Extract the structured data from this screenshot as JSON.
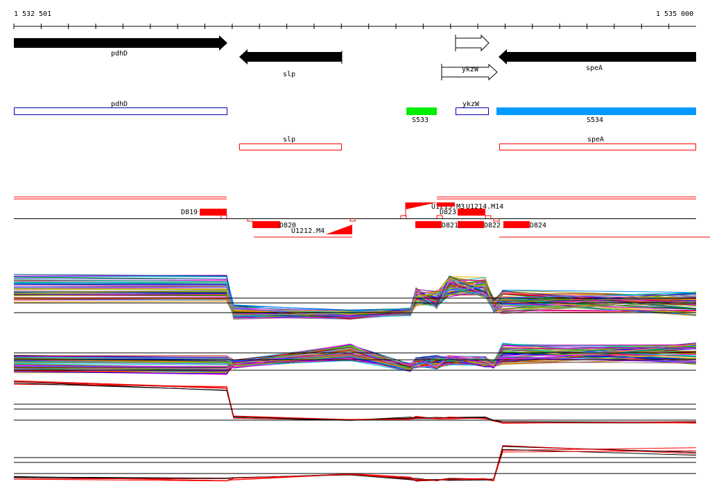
{
  "ruler": {
    "start_label": "1 532 501",
    "end_label": "1 535 000"
  },
  "genes_arrows": [
    {
      "name": "pdhD",
      "strand": "+",
      "filled": true
    },
    {
      "name": "slp",
      "strand": "-",
      "filled": true
    },
    {
      "name": "",
      "strand": "+",
      "filled": false
    },
    {
      "name": "ykzW",
      "strand": "+",
      "filled": false
    },
    {
      "name": "speA",
      "strand": "-",
      "filled": true
    }
  ],
  "annotation_boxes": [
    {
      "label": "pdhD",
      "style": "blue-outline"
    },
    {
      "label": "S533",
      "style": "green-fill",
      "color": "#00ee00"
    },
    {
      "label": "ykzW",
      "style": "blue-outline"
    },
    {
      "label": "S534",
      "style": "blue-fill",
      "color": "#0099ff"
    },
    {
      "label": "slp",
      "style": "red-outline"
    },
    {
      "label": "speA",
      "style": "red-outline"
    }
  ],
  "features": {
    "blocks": [
      "D819",
      "D820",
      "U1212.M4",
      "U1213.M3",
      "U1214.M14",
      "D823",
      "D821",
      "D822",
      "D824"
    ]
  },
  "colors": {
    "filled_arrow": "#000000",
    "blue_outline": "#0000aa",
    "red": "#ff0000",
    "green": "#00ee00",
    "blue_fill": "#0099ff"
  }
}
